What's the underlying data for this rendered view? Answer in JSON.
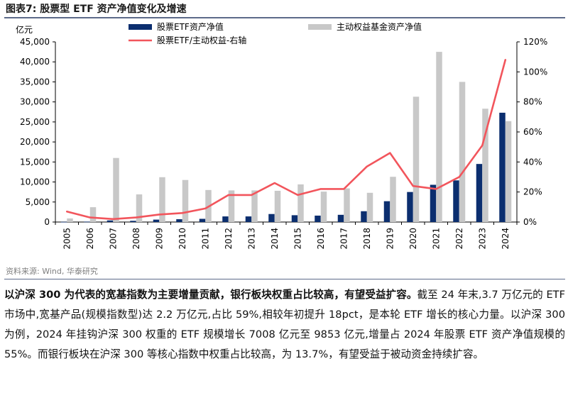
{
  "figure_title": "图表7:  股票型 ETF 资产净值变化及增速",
  "source": "资料来源: Wind, 华泰研究",
  "body": {
    "lead": "以沪深 300 为代表的宽基指数为主要增量贡献，银行板块权重占比较高，有望受益扩容。",
    "text": "截至 24 年末,3.7 万亿元的 ETF 市场中,宽基产品(规模指数型)达 2.2 万亿元,占比 59%,相较年初提升 18pct，是本轮 ETF 增长的核心力量。以沪深 300 为例，2024 年挂钩沪深 300 权重的 ETF 规模增长 7008 亿元至 9853 亿元,增量占 2024 年股票 ETF 资产净值规模的 55%。而银行板块在沪深 300 等核心指数中权重占比较高，为 13.7%，有望受益于被动资金持续扩容。"
  },
  "chart_data": {
    "type": "bar",
    "ylabel": "亿元",
    "categories": [
      "2005",
      "2006",
      "2007",
      "2008",
      "2009",
      "2010",
      "2011",
      "2012",
      "2013",
      "2014",
      "2015",
      "2016",
      "2017",
      "2018",
      "2019",
      "2020",
      "2021",
      "2022",
      "2023",
      "2024"
    ],
    "series": [
      {
        "name": "股票ETF资产净值",
        "type": "bar",
        "axis": "left",
        "color": "#0b2e6f",
        "values": [
          50,
          100,
          400,
          300,
          600,
          700,
          800,
          1400,
          1400,
          2000,
          1700,
          1600,
          1800,
          2700,
          5200,
          7500,
          9300,
          10400,
          14500,
          27300
        ]
      },
      {
        "name": "主动权益基金资产净值",
        "type": "bar",
        "axis": "left",
        "color": "#c8c8c8",
        "values": [
          900,
          3700,
          16000,
          6900,
          11200,
          10500,
          8000,
          7900,
          7900,
          7800,
          9400,
          7600,
          8400,
          7300,
          11300,
          31300,
          42500,
          35000,
          28300,
          25200
        ]
      },
      {
        "name": "股票ETF/主动权益-右轴",
        "type": "line",
        "axis": "right",
        "color": "#f2555c",
        "values": [
          0.07,
          0.03,
          0.02,
          0.03,
          0.05,
          0.06,
          0.09,
          0.18,
          0.18,
          0.26,
          0.18,
          0.22,
          0.22,
          0.37,
          0.46,
          0.24,
          0.22,
          0.3,
          0.51,
          1.08
        ]
      }
    ],
    "y_left": {
      "min": 0,
      "max": 45000,
      "ticks": [
        0,
        5000,
        10000,
        15000,
        20000,
        25000,
        30000,
        35000,
        40000,
        45000
      ],
      "tick_labels": [
        "0",
        "5,000",
        "10,000",
        "15,000",
        "20,000",
        "25,000",
        "30,000",
        "35,000",
        "40,000",
        "45,000"
      ]
    },
    "y_right": {
      "min": 0,
      "max": 1.2,
      "ticks": [
        0,
        0.2,
        0.4,
        0.6,
        0.8,
        1.0,
        1.2
      ],
      "tick_labels": [
        "0%",
        "20%",
        "40%",
        "60%",
        "80%",
        "100%",
        "120%"
      ]
    },
    "grid": false,
    "legend": "top"
  }
}
